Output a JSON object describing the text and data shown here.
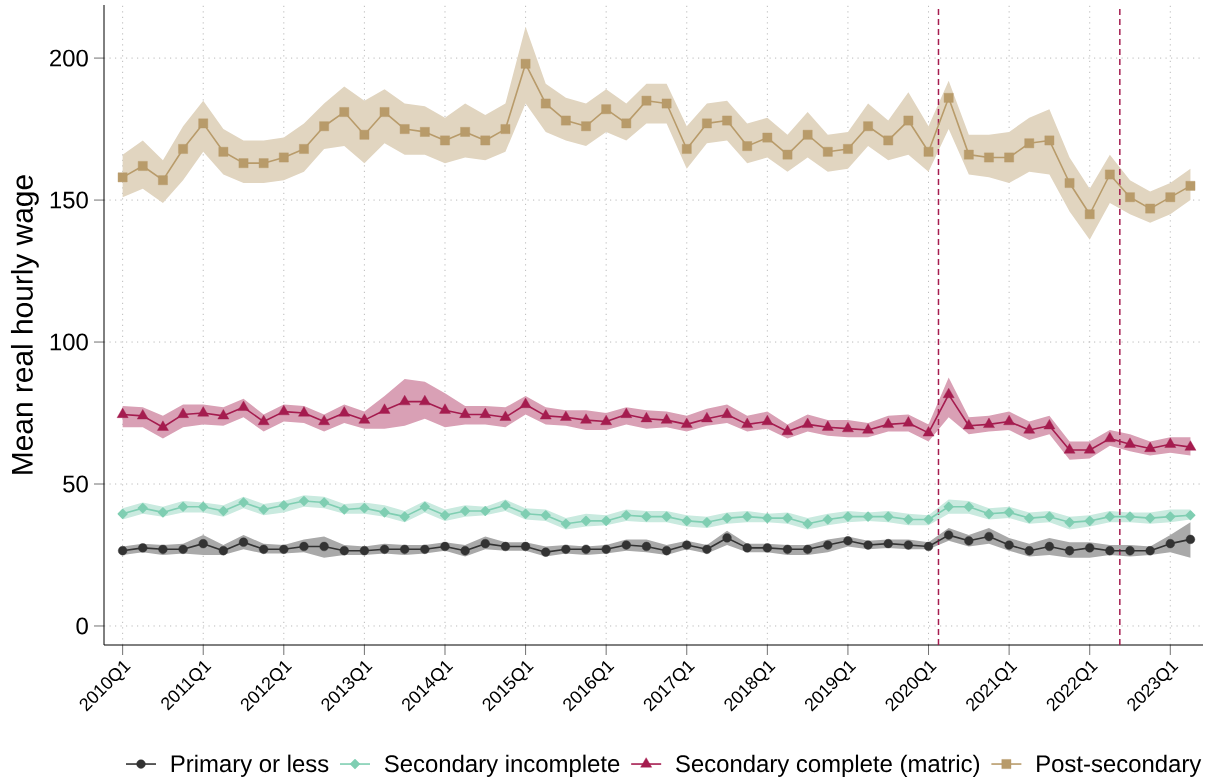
{
  "chart_data": {
    "type": "line",
    "ylabel": "Mean real hourly wage",
    "x": [
      "2010-01",
      "2010-04",
      "2010-07",
      "2010-10",
      "2011-01",
      "2011-04",
      "2011-07",
      "2011-10",
      "2012-01",
      "2012-04",
      "2012-07",
      "2012-10",
      "2013-01",
      "2013-04",
      "2013-07",
      "2013-10",
      "2014-01",
      "2014-04",
      "2014-07",
      "2014-10",
      "2015-01",
      "2015-04",
      "2015-07",
      "2015-10",
      "2016-01",
      "2016-04",
      "2016-07",
      "2016-10",
      "2017-01",
      "2017-04",
      "2017-07",
      "2017-10",
      "2018-01",
      "2018-04",
      "2018-07",
      "2018-10",
      "2019-01",
      "2019-04",
      "2019-07",
      "2019-10",
      "2020-01",
      "2020-04",
      "2020-07",
      "2020-10",
      "2021-01",
      "2021-04",
      "2021-07",
      "2021-10",
      "2022-01",
      "2022-04",
      "2022-07",
      "2022-10",
      "2023-01",
      "2023-04"
    ],
    "xlim": [
      "2009-10-08",
      "2023-05-28"
    ],
    "xticks": [
      {
        "value": "2010-01",
        "label": "2010Q1"
      },
      {
        "value": "2011-01",
        "label": "2011Q1"
      },
      {
        "value": "2012-01",
        "label": "2012Q1"
      },
      {
        "value": "2013-01",
        "label": "2013Q1"
      },
      {
        "value": "2014-01",
        "label": "2014Q1"
      },
      {
        "value": "2015-01",
        "label": "2015Q1"
      },
      {
        "value": "2016-01",
        "label": "2016Q1"
      },
      {
        "value": "2017-01",
        "label": "2017Q1"
      },
      {
        "value": "2018-01",
        "label": "2018Q1"
      },
      {
        "value": "2019-01",
        "label": "2019Q1"
      },
      {
        "value": "2020-01",
        "label": "2020Q1"
      },
      {
        "value": "2021-01",
        "label": "2021Q1"
      },
      {
        "value": "2022-01",
        "label": "2022Q1"
      },
      {
        "value": "2023-01",
        "label": "2023Q1"
      }
    ],
    "ylim": [
      -6.7,
      218.7
    ],
    "yticks": [
      0,
      50,
      100,
      150,
      200
    ],
    "grid": true,
    "legend": "bottom",
    "line_style": "solid",
    "series": [
      {
        "name": "Primary or less",
        "color": "#333333",
        "marker": "circle",
        "values": [
          26.5,
          27.5,
          27,
          27,
          29,
          26.5,
          29.5,
          27,
          27,
          28,
          28,
          26.5,
          26.5,
          27,
          27,
          27,
          28,
          26.5,
          29,
          28,
          28,
          26,
          27,
          27,
          27,
          28.5,
          28,
          26.5,
          28.5,
          27,
          31,
          27.5,
          27.5,
          27,
          27,
          28.5,
          30,
          28.5,
          29,
          28.5,
          28,
          32,
          30,
          31.5,
          28.5,
          26.5,
          28,
          26.5,
          27.5,
          26.5,
          26.5,
          26.5,
          29,
          30.5
        ],
        "upper": [
          28,
          29,
          28.5,
          29,
          32,
          28.5,
          32,
          29,
          28.5,
          30.5,
          31.5,
          28.5,
          28,
          29,
          28.5,
          28.5,
          29.5,
          28.5,
          31.5,
          29.5,
          29.5,
          28,
          28.5,
          28,
          28.5,
          30.5,
          30.5,
          28.5,
          30,
          28.5,
          33.5,
          29,
          29,
          28.5,
          28.5,
          30.5,
          31.5,
          30,
          30.5,
          30.5,
          29.5,
          34.5,
          32,
          34.5,
          31,
          29,
          31,
          29.5,
          29.5,
          28.5,
          28.5,
          28,
          32,
          36.5
        ],
        "lower": [
          25,
          26,
          25,
          25.5,
          25,
          25,
          27,
          25.5,
          25.5,
          26,
          24,
          25,
          25,
          25.5,
          25,
          25.5,
          26.5,
          24.5,
          27,
          26.5,
          26.5,
          24.5,
          25.5,
          25,
          25.5,
          26.5,
          26,
          25,
          27,
          25.5,
          28.5,
          26,
          26,
          25,
          25,
          26,
          28,
          27,
          27.5,
          27,
          27,
          30,
          28,
          29,
          26.5,
          24.5,
          25,
          24,
          24,
          25,
          24.5,
          25,
          26,
          24
        ]
      },
      {
        "name": "Secondary incomplete",
        "color": "#7fceb2",
        "marker": "diamond",
        "values": [
          39.5,
          41.5,
          40,
          42,
          42,
          40.5,
          43.5,
          41,
          42.5,
          44,
          43.5,
          41,
          41.5,
          40,
          38.5,
          42,
          39,
          40.5,
          40.5,
          42.5,
          39.5,
          39,
          36,
          37,
          37,
          39,
          38.5,
          38.5,
          37,
          36.5,
          38,
          38.5,
          38,
          38,
          36,
          37.5,
          38.5,
          38.5,
          38.5,
          37.5,
          37.5,
          42,
          42,
          39.5,
          40,
          38,
          38.5,
          36.5,
          37,
          38.5,
          38.5,
          38,
          38.5,
          39
        ],
        "upper": [
          41.5,
          43.5,
          42,
          44,
          43.5,
          42.5,
          45.5,
          43,
          44,
          46,
          45.5,
          43,
          43.5,
          42.5,
          40.5,
          44,
          41,
          42.5,
          42,
          44.5,
          41.5,
          41,
          38,
          39.5,
          39,
          41,
          40.5,
          40.5,
          39,
          38.5,
          40,
          40.5,
          39.5,
          40,
          38,
          39.5,
          40.5,
          40,
          40.5,
          39.5,
          39,
          44.5,
          44,
          41.5,
          42,
          40,
          40.5,
          38.5,
          39,
          40.5,
          40,
          40,
          41,
          41
        ],
        "lower": [
          37.5,
          39.5,
          38.5,
          40,
          40,
          38.5,
          41.5,
          39,
          40,
          42,
          41.5,
          39.5,
          39.5,
          38.5,
          36.5,
          40,
          37,
          38.5,
          39,
          40.5,
          37.5,
          37,
          34,
          35,
          35.5,
          37,
          36.5,
          36.5,
          35,
          34.5,
          36,
          36.5,
          36.5,
          36,
          34,
          35.5,
          36.5,
          37,
          36.5,
          35.5,
          35.5,
          39.5,
          39.5,
          37.5,
          38,
          36,
          36.5,
          34,
          35,
          36.5,
          36.5,
          36,
          36.5,
          37.5
        ]
      },
      {
        "name": "Secondary complete (matric)",
        "color": "#a51c4f",
        "marker": "triangle",
        "values": [
          74.5,
          74,
          70,
          74.5,
          75,
          74,
          77,
          72,
          75.5,
          75,
          72,
          75,
          72.5,
          76,
          79,
          79,
          76,
          74.5,
          74.5,
          73.5,
          78,
          74,
          73.5,
          72.5,
          72,
          74.5,
          73,
          72.5,
          71,
          73,
          74.5,
          71,
          72,
          68.5,
          71,
          70,
          69.5,
          69,
          71,
          71.5,
          68,
          81.5,
          70.5,
          71,
          72,
          69,
          70.5,
          62,
          62,
          66,
          64,
          62.5,
          64,
          63
        ],
        "upper": [
          77.5,
          77,
          74,
          78,
          78,
          77,
          80,
          74.5,
          78,
          77.5,
          74.5,
          78,
          75.5,
          81,
          87,
          86,
          82,
          77.5,
          77.5,
          77,
          81,
          77,
          76,
          76,
          75,
          77,
          76,
          75.5,
          74,
          76.5,
          78,
          74,
          75.5,
          71,
          74.5,
          72.5,
          72.5,
          71.5,
          74,
          74.5,
          71,
          87.5,
          73.5,
          74,
          75.5,
          72,
          74,
          65,
          65,
          69,
          67.5,
          65,
          66.5,
          66.5
        ],
        "lower": [
          70,
          70,
          66,
          70,
          71,
          70.5,
          73.5,
          68.5,
          72,
          71.5,
          68.5,
          71.5,
          69.5,
          69.5,
          70.5,
          73,
          70,
          71,
          71,
          70,
          74.5,
          71,
          70.5,
          69,
          69,
          71,
          69.5,
          70,
          68.5,
          70.5,
          71.5,
          68.5,
          69.5,
          66,
          68.5,
          67,
          66.5,
          66.5,
          68.5,
          68.5,
          65,
          73.5,
          67.5,
          68.5,
          69,
          65.5,
          67.5,
          58.5,
          59,
          63.5,
          61.5,
          60,
          61,
          60
        ]
      },
      {
        "name": "Post-secondary",
        "color": "#b89b6a",
        "marker": "square",
        "values": [
          158,
          162,
          157,
          168,
          177,
          167,
          163,
          163,
          165,
          168,
          176,
          181,
          173,
          181,
          175,
          174,
          171,
          174,
          171,
          175,
          198,
          184,
          178,
          176,
          182,
          177,
          185,
          184,
          168,
          177,
          178,
          169,
          172,
          166,
          173,
          167,
          168,
          176,
          171,
          178,
          167,
          186,
          166,
          165,
          165,
          170,
          171,
          156,
          145,
          159,
          151,
          147,
          151,
          155
        ],
        "upper": [
          166,
          171,
          164,
          176,
          185,
          175,
          171,
          171,
          172,
          177,
          184,
          190,
          185,
          189,
          184,
          183,
          179,
          184,
          180,
          184,
          211,
          191,
          186,
          184,
          189,
          184,
          191,
          191,
          176,
          184,
          185,
          177,
          179,
          173,
          181,
          173,
          174,
          184,
          178,
          188,
          176,
          192,
          173,
          173,
          174,
          179,
          182,
          165,
          154,
          166,
          157,
          153,
          156,
          161
        ],
        "lower": [
          151,
          154,
          149,
          157,
          167,
          159,
          156,
          156,
          157,
          160,
          168,
          169,
          163,
          170,
          166,
          166,
          163,
          165,
          164,
          167,
          184,
          174,
          171,
          169,
          174,
          171,
          177,
          177,
          161,
          170,
          171,
          163,
          165,
          160,
          165,
          160,
          161,
          169,
          164,
          166,
          160,
          175,
          159,
          158,
          156,
          160,
          159,
          146,
          136,
          149,
          145,
          142,
          145,
          150
        ]
      }
    ],
    "ref_lines": [
      {
        "axis": "x",
        "value": "2020-02-15",
        "color": "#a51c4f",
        "line_style": "dashed"
      },
      {
        "axis": "x",
        "value": "2022-05-16",
        "color": "#a51c4f",
        "line_style": "dashed"
      }
    ]
  }
}
